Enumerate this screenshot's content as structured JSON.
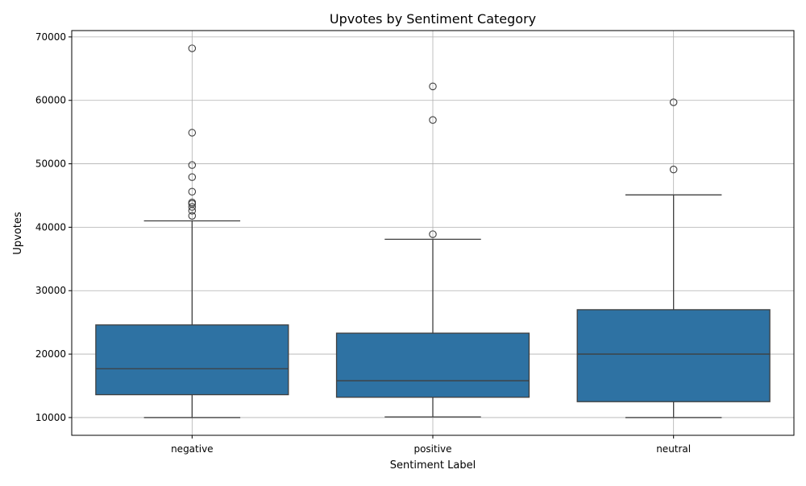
{
  "chart_data": {
    "type": "box",
    "title": "Upvotes by Sentiment Category",
    "xlabel": "Sentiment Label",
    "ylabel": "Upvotes",
    "ylim": [
      7200,
      71000
    ],
    "yticks": [
      10000,
      20000,
      30000,
      40000,
      50000,
      60000,
      70000
    ],
    "grid": true,
    "box_color": "#2e72a3",
    "line_color": "#3f3f3f",
    "grid_color": "#b0b0b0",
    "categories": [
      "negative",
      "positive",
      "neutral"
    ],
    "boxes": [
      {
        "category": "negative",
        "whisker_low": 10000,
        "q1": 13600,
        "median": 17700,
        "q3": 24600,
        "whisker_high": 41000,
        "outliers": [
          41800,
          42600,
          43200,
          43700,
          43900,
          45600,
          47900,
          49800,
          54900,
          68200
        ]
      },
      {
        "category": "positive",
        "whisker_low": 10100,
        "q1": 13200,
        "median": 15800,
        "q3": 23300,
        "whisker_high": 38100,
        "outliers": [
          38900,
          56900,
          62200
        ]
      },
      {
        "category": "neutral",
        "whisker_low": 10000,
        "q1": 12500,
        "median": 20000,
        "q3": 27000,
        "whisker_high": 45100,
        "outliers": [
          49100,
          59700
        ]
      }
    ]
  }
}
